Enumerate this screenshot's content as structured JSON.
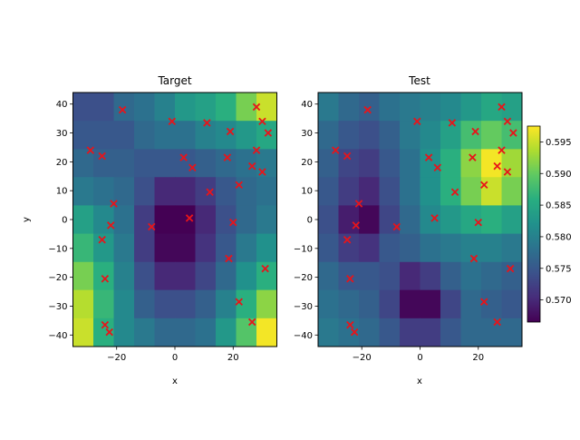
{
  "figure": {
    "colorbar_ticks": [
      "0.570",
      "0.575",
      "0.580",
      "0.585",
      "0.590",
      "0.595"
    ]
  },
  "chart_data": [
    {
      "type": "heatmap",
      "title": "Target",
      "xlabel": "x",
      "ylabel": "y",
      "xlim": [
        -35,
        35
      ],
      "ylim": [
        -44,
        44
      ],
      "xticks": [
        -20,
        0,
        20
      ],
      "yticks": [
        -40,
        -30,
        -20,
        -10,
        0,
        10,
        20,
        30,
        40
      ],
      "colormap": "viridis",
      "value_range": [
        0.5665,
        0.5975
      ],
      "grid_x_edges": [
        -35,
        -28,
        -21,
        -14,
        -7,
        0,
        7,
        14,
        21,
        28,
        35
      ],
      "grid_y_edges_top_to_bottom": [
        44,
        34.2,
        24.4,
        14.7,
        4.9,
        -4.9,
        -14.7,
        -24.4,
        -34.2,
        -44
      ],
      "cell_values_top_to_bottom": [
        [
          0.574,
          0.574,
          0.577,
          0.578,
          0.58,
          0.583,
          0.584,
          0.586,
          0.591,
          0.595
        ],
        [
          0.575,
          0.575,
          0.575,
          0.577,
          0.578,
          0.578,
          0.58,
          0.581,
          0.583,
          0.585
        ],
        [
          0.577,
          0.576,
          0.576,
          0.575,
          0.575,
          0.575,
          0.576,
          0.577,
          0.578,
          0.579
        ],
        [
          0.579,
          0.578,
          0.577,
          0.574,
          0.57,
          0.57,
          0.572,
          0.575,
          0.577,
          0.578
        ],
        [
          0.584,
          0.581,
          0.578,
          0.572,
          0.566,
          0.566,
          0.57,
          0.574,
          0.577,
          0.579
        ],
        [
          0.587,
          0.583,
          0.579,
          0.572,
          0.567,
          0.567,
          0.571,
          0.575,
          0.579,
          0.582
        ],
        [
          0.591,
          0.586,
          0.58,
          0.574,
          0.57,
          0.57,
          0.573,
          0.577,
          0.582,
          0.586
        ],
        [
          0.594,
          0.587,
          0.581,
          0.576,
          0.574,
          0.574,
          0.576,
          0.58,
          0.586,
          0.592
        ],
        [
          0.595,
          0.586,
          0.581,
          0.579,
          0.577,
          0.577,
          0.578,
          0.583,
          0.589,
          0.597
        ]
      ],
      "markers": [
        {
          "x": -18,
          "y": 38
        },
        {
          "x": -1,
          "y": 34
        },
        {
          "x": 11,
          "y": 33.5
        },
        {
          "x": 19,
          "y": 30.5
        },
        {
          "x": 28,
          "y": 39
        },
        {
          "x": 30,
          "y": 34
        },
        {
          "x": 32,
          "y": 30
        },
        {
          "x": -29,
          "y": 24
        },
        {
          "x": -25,
          "y": 22
        },
        {
          "x": 3,
          "y": 21.5
        },
        {
          "x": 6,
          "y": 18
        },
        {
          "x": 18,
          "y": 21.5
        },
        {
          "x": 28,
          "y": 24
        },
        {
          "x": 26.5,
          "y": 18.5
        },
        {
          "x": 30,
          "y": 16.5
        },
        {
          "x": 22,
          "y": 12
        },
        {
          "x": 12,
          "y": 9.5
        },
        {
          "x": -21,
          "y": 5.5
        },
        {
          "x": -22,
          "y": -2
        },
        {
          "x": -8,
          "y": -2.5
        },
        {
          "x": 5,
          "y": 0.5
        },
        {
          "x": 20,
          "y": -1
        },
        {
          "x": -25,
          "y": -7
        },
        {
          "x": -24,
          "y": -20.5
        },
        {
          "x": 18.5,
          "y": -13.5
        },
        {
          "x": 31,
          "y": -17
        },
        {
          "x": 22,
          "y": -28.5
        },
        {
          "x": 26.5,
          "y": -35.5
        },
        {
          "x": -24,
          "y": -36.5
        },
        {
          "x": -22.5,
          "y": -39
        }
      ]
    },
    {
      "type": "heatmap",
      "title": "Test",
      "xlabel": "x",
      "ylabel": "",
      "xlim": [
        -35,
        35
      ],
      "ylim": [
        -44,
        44
      ],
      "xticks": [
        -20,
        0,
        20
      ],
      "yticks": [
        -40,
        -30,
        -20,
        -10,
        0,
        10,
        20,
        30,
        40
      ],
      "colormap": "viridis",
      "value_range": [
        0.5665,
        0.5975
      ],
      "grid_x_edges": [
        -35,
        -28,
        -21,
        -14,
        -7,
        0,
        7,
        14,
        21,
        28,
        35
      ],
      "grid_y_edges_top_to_bottom": [
        44,
        34.2,
        24.4,
        14.7,
        4.9,
        -4.9,
        -14.7,
        -24.4,
        -34.2,
        -44
      ],
      "cell_values_top_to_bottom": [
        [
          0.579,
          0.577,
          0.576,
          0.578,
          0.579,
          0.58,
          0.581,
          0.583,
          0.585,
          0.584
        ],
        [
          0.577,
          0.575,
          0.574,
          0.576,
          0.579,
          0.581,
          0.584,
          0.588,
          0.59,
          0.588
        ],
        [
          0.576,
          0.573,
          0.572,
          0.575,
          0.578,
          0.582,
          0.586,
          0.592,
          0.597,
          0.593
        ],
        [
          0.575,
          0.572,
          0.57,
          0.574,
          0.578,
          0.582,
          0.586,
          0.591,
          0.595,
          0.591
        ],
        [
          0.574,
          0.569,
          0.567,
          0.573,
          0.577,
          0.581,
          0.583,
          0.585,
          0.586,
          0.584
        ],
        [
          0.575,
          0.572,
          0.571,
          0.575,
          0.576,
          0.578,
          0.579,
          0.58,
          0.58,
          0.579
        ],
        [
          0.577,
          0.575,
          0.575,
          0.574,
          0.57,
          0.572,
          0.576,
          0.578,
          0.577,
          0.576
        ],
        [
          0.578,
          0.577,
          0.576,
          0.573,
          0.567,
          0.567,
          0.573,
          0.577,
          0.576,
          0.575
        ],
        [
          0.579,
          0.578,
          0.577,
          0.575,
          0.572,
          0.572,
          0.575,
          0.577,
          0.577,
          0.577
        ]
      ],
      "markers": [
        {
          "x": -18,
          "y": 38
        },
        {
          "x": -1,
          "y": 34
        },
        {
          "x": 11,
          "y": 33.5
        },
        {
          "x": 19,
          "y": 30.5
        },
        {
          "x": 28,
          "y": 39
        },
        {
          "x": 30,
          "y": 34
        },
        {
          "x": 32,
          "y": 30
        },
        {
          "x": -29,
          "y": 24
        },
        {
          "x": -25,
          "y": 22
        },
        {
          "x": 3,
          "y": 21.5
        },
        {
          "x": 6,
          "y": 18
        },
        {
          "x": 18,
          "y": 21.5
        },
        {
          "x": 28,
          "y": 24
        },
        {
          "x": 26.5,
          "y": 18.5
        },
        {
          "x": 30,
          "y": 16.5
        },
        {
          "x": 22,
          "y": 12
        },
        {
          "x": 12,
          "y": 9.5
        },
        {
          "x": -21,
          "y": 5.5
        },
        {
          "x": -22,
          "y": -2
        },
        {
          "x": -8,
          "y": -2.5
        },
        {
          "x": 5,
          "y": 0.5
        },
        {
          "x": 20,
          "y": -1
        },
        {
          "x": -25,
          "y": -7
        },
        {
          "x": -24,
          "y": -20.5
        },
        {
          "x": 18.5,
          "y": -13.5
        },
        {
          "x": 31,
          "y": -17
        },
        {
          "x": 22,
          "y": -28.5
        },
        {
          "x": 26.5,
          "y": -35.5
        },
        {
          "x": -24,
          "y": -36.5
        },
        {
          "x": -22.5,
          "y": -39
        }
      ]
    }
  ]
}
